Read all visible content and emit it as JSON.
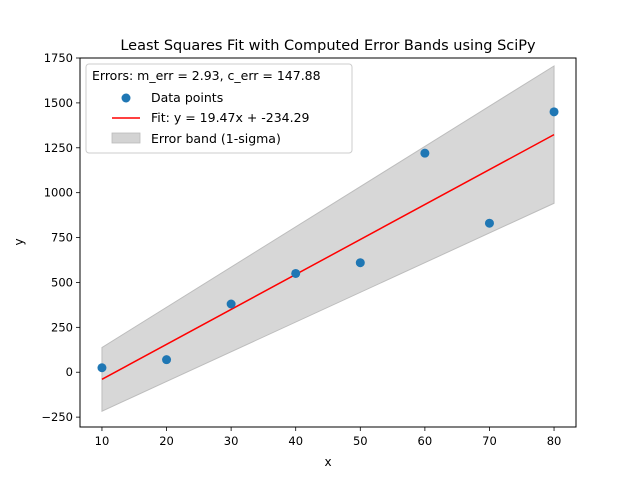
{
  "chart_data": {
    "type": "scatter",
    "title": "Least Squares Fit with Computed Error Bands using SciPy",
    "xlabel": "x",
    "ylabel": "y",
    "xlim": [
      6.6,
      83.4
    ],
    "ylim": [
      -305,
      1750
    ],
    "x_ticks": [
      10,
      20,
      30,
      40,
      50,
      60,
      70,
      80
    ],
    "y_ticks": [
      -250,
      0,
      250,
      500,
      750,
      1000,
      1250,
      1500,
      1750
    ],
    "grid": false,
    "legend": {
      "placement": "top-left",
      "title": "Errors: m_err = 2.93, c_err = 147.88",
      "entries": [
        "Data points",
        "Fit: y = 19.47x + -234.29",
        "Error band (1-sigma)"
      ]
    },
    "points": {
      "name": "Data points",
      "color": "#1f77b4",
      "x": [
        10,
        20,
        30,
        40,
        50,
        60,
        70,
        80
      ],
      "y": [
        25,
        70,
        380,
        550,
        610,
        1220,
        830,
        1450
      ]
    },
    "fit": {
      "name": "Fit: y = 19.47x + -234.29",
      "color": "#ff0000",
      "slope": 19.47,
      "intercept": -234.29,
      "x_range": [
        10,
        80
      ]
    },
    "band": {
      "name": "Error band (1-sigma)",
      "color": "#d3d3d3",
      "m_err": 2.93,
      "c_err": 147.88
    }
  }
}
